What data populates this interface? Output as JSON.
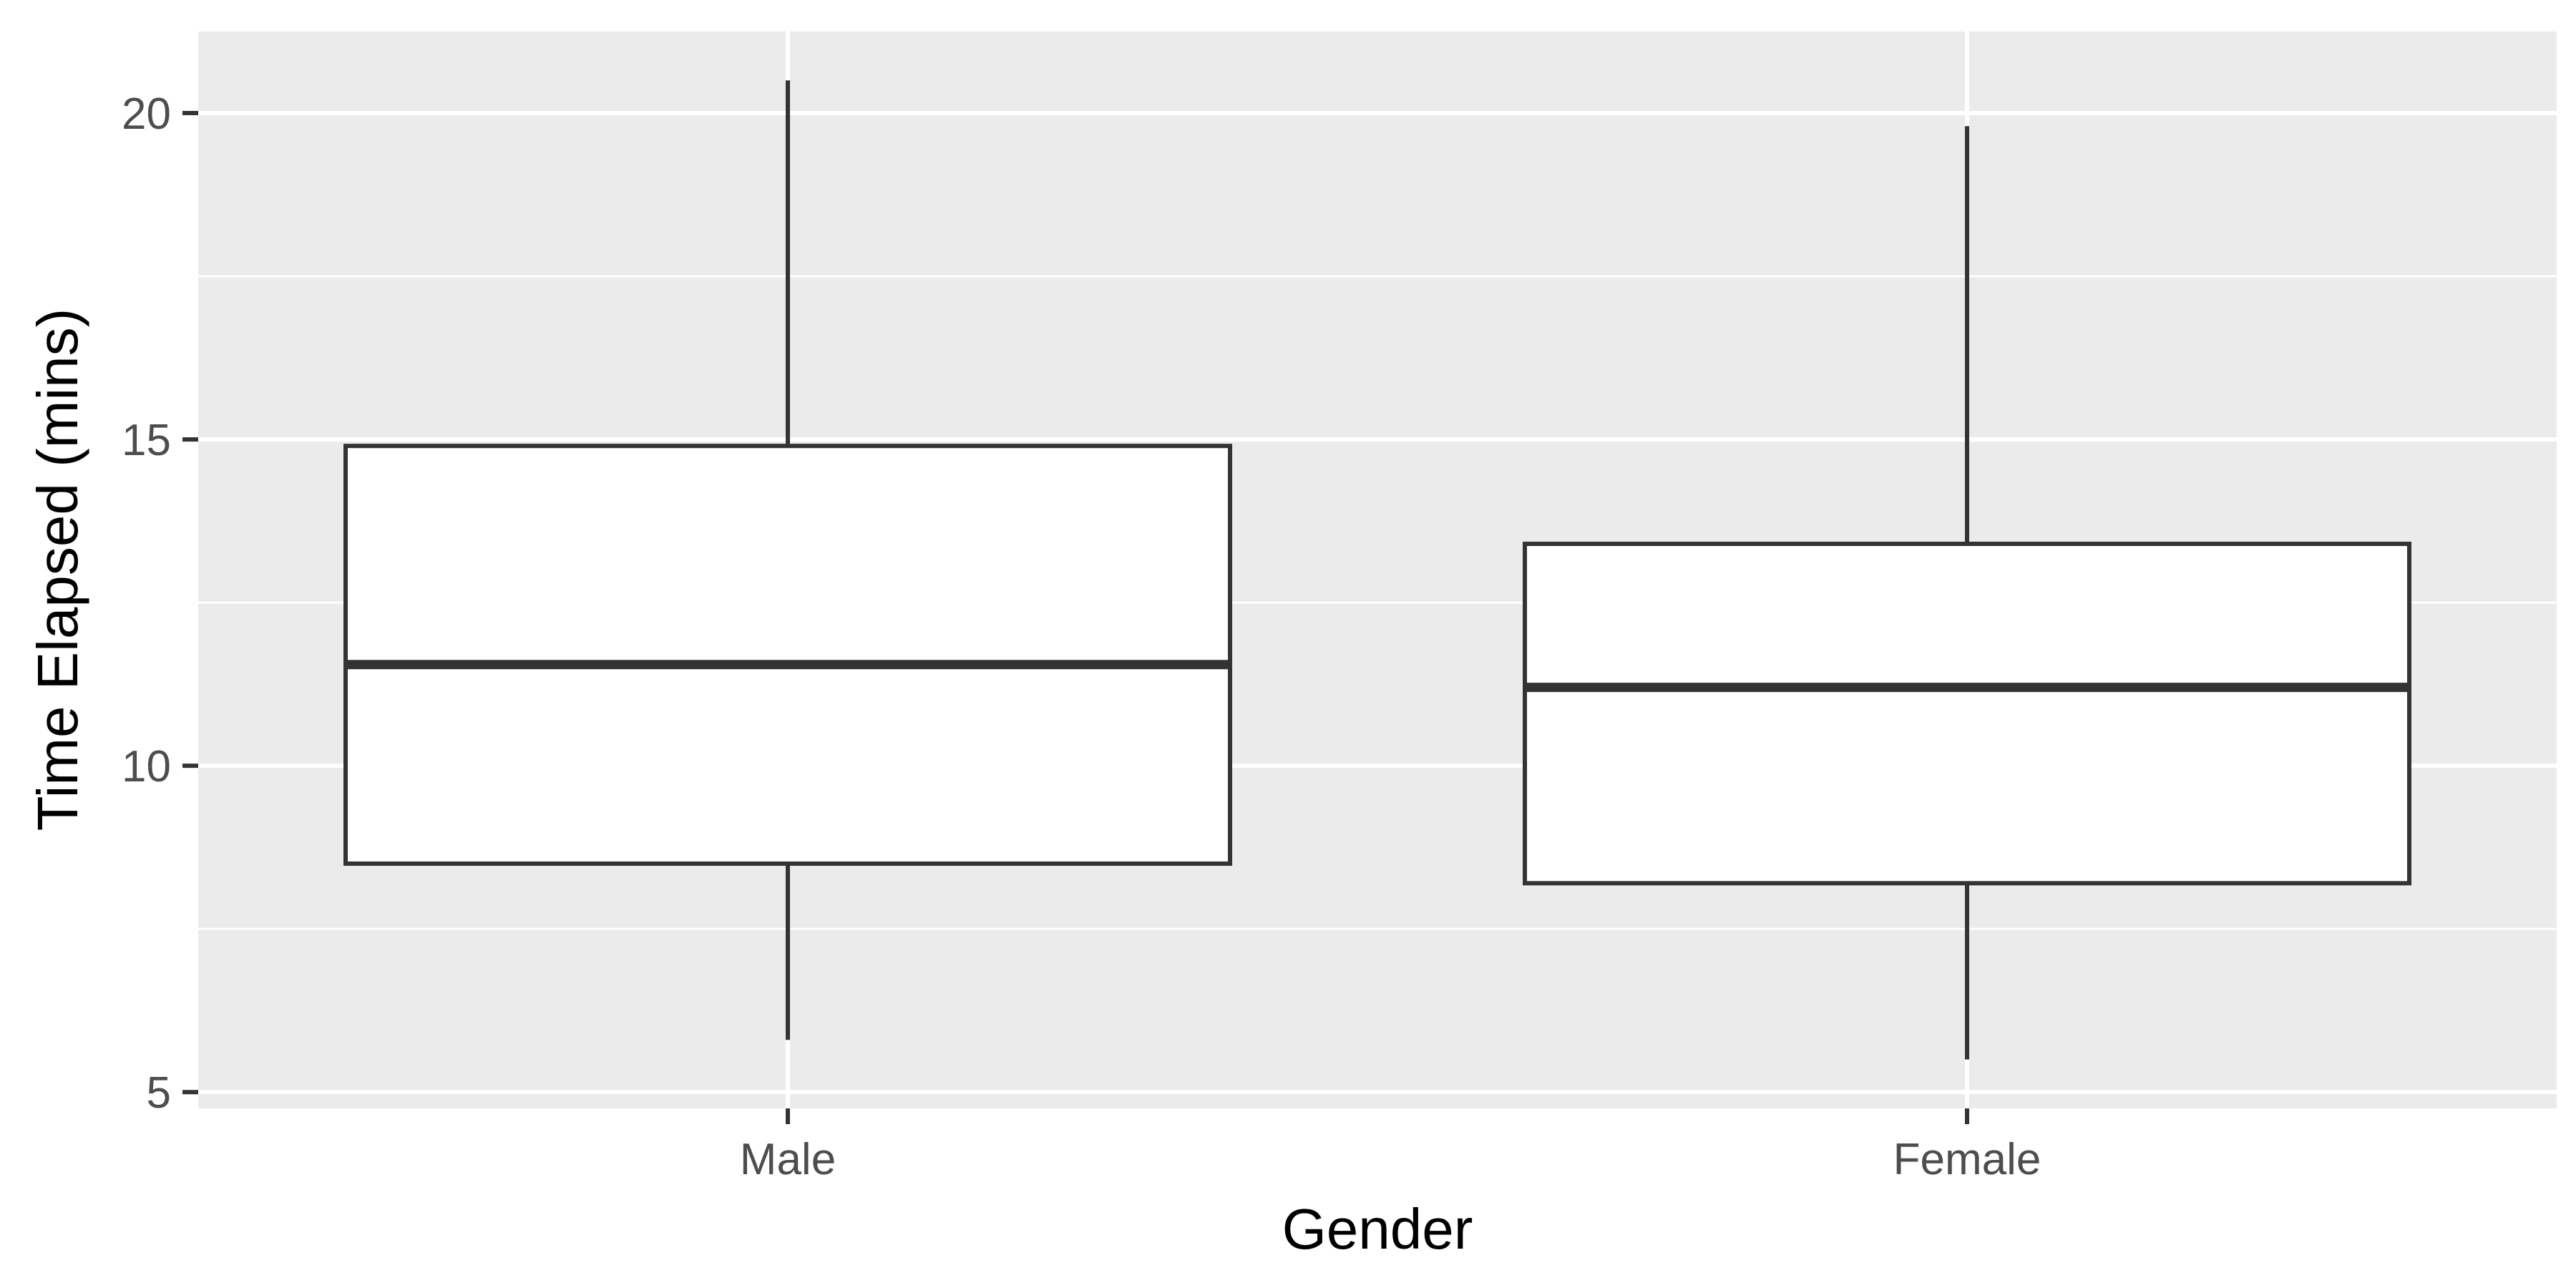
{
  "chart_data": {
    "type": "boxplot",
    "title": "",
    "xlabel": "Gender",
    "ylabel": "Time Elapsed (mins)",
    "categories": [
      "Male",
      "Female"
    ],
    "boxes": [
      {
        "category": "Male",
        "whisker_low": 5.8,
        "q1": 8.5,
        "median": 11.55,
        "q3": 14.9,
        "whisker_high": 20.5
      },
      {
        "category": "Female",
        "whisker_low": 5.5,
        "q1": 8.2,
        "median": 11.2,
        "q3": 13.4,
        "whisker_high": 19.8
      }
    ],
    "y_ticks": [
      5,
      10,
      15,
      20
    ],
    "ylim": [
      4.75,
      21.25
    ],
    "grid": true,
    "legend": "none",
    "colors": {
      "panel": "#ebebeb",
      "grid": "#ffffff",
      "box_fill": "#ffffff",
      "box_stroke": "#333333",
      "tick_label": "#4d4d4d",
      "axis_title": "#000000"
    }
  }
}
